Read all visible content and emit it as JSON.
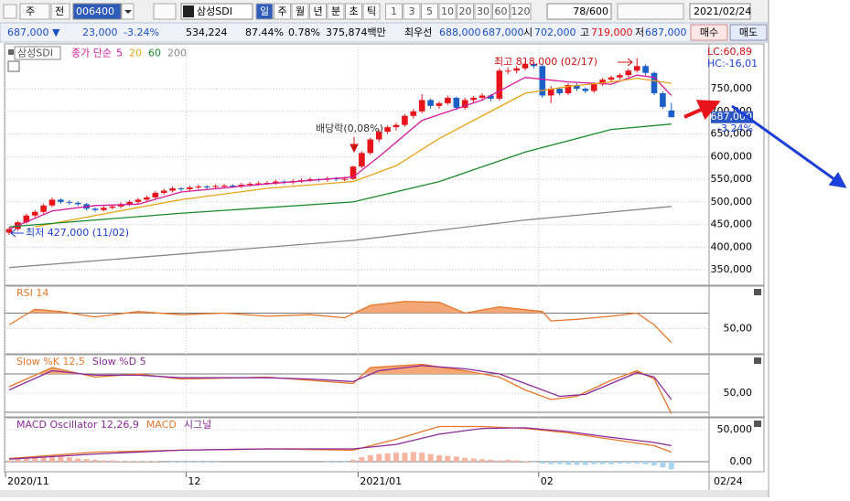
{
  "toolbar": {
    "market": "주",
    "prev": "전",
    "code": "006400",
    "name": "삼성SDI",
    "periods": [
      "일",
      "주",
      "월",
      "년",
      "분",
      "초",
      "틱"
    ],
    "intervals": [
      "1",
      "3",
      "5",
      "10",
      "20",
      "30",
      "60",
      "120"
    ],
    "count": "78/600",
    "date": "2021/02/24"
  },
  "quote": {
    "items": [
      "687,000 ▼",
      "23,000",
      "-3.24%",
      "534,224",
      "87.44%",
      "0.78%",
      "375,874백만",
      "최우선",
      "688,000",
      "687,000",
      "시",
      "702,000",
      "고",
      "719,000",
      "저",
      "687,000"
    ],
    "buy": "매수",
    "sell": "매도"
  },
  "chart_data": [
    {
      "type": "candlestick",
      "legend_box": "삼성SDI",
      "ma_label": "종가 단순",
      "categories": [
        "2020/11",
        null,
        null,
        null,
        null,
        null,
        null,
        null,
        null,
        null,
        null,
        null,
        null,
        null,
        null,
        null,
        null,
        null,
        null,
        null,
        null,
        "12",
        null,
        null,
        null,
        null,
        null,
        null,
        null,
        null,
        null,
        null,
        null,
        null,
        null,
        null,
        null,
        null,
        null,
        null,
        null,
        "2021/01",
        null,
        null,
        null,
        null,
        null,
        null,
        null,
        null,
        null,
        null,
        null,
        null,
        null,
        null,
        null,
        null,
        null,
        null,
        null,
        null,
        "02",
        null,
        null,
        null,
        null,
        null,
        null,
        null,
        null,
        null,
        null,
        null,
        null,
        null,
        null,
        null
      ],
      "up_color": "#e8141b",
      "down_color": "#1c5fc9",
      "ohlc": [
        [
          432000,
          445000,
          427000,
          440000
        ],
        [
          440000,
          458000,
          436000,
          455000
        ],
        [
          455000,
          474000,
          452000,
          470000
        ],
        [
          470000,
          482000,
          466000,
          478000
        ],
        [
          478000,
          496000,
          474000,
          492000
        ],
        [
          492000,
          510000,
          488000,
          505000
        ],
        [
          505000,
          508000,
          496000,
          500000
        ],
        [
          500000,
          504000,
          494000,
          498000
        ],
        [
          498000,
          501000,
          491000,
          495000
        ],
        [
          495000,
          498000,
          481000,
          485000
        ],
        [
          485000,
          488000,
          478000,
          482000
        ],
        [
          482000,
          491000,
          479000,
          487000
        ],
        [
          487000,
          494000,
          484000,
          490000
        ],
        [
          490000,
          499000,
          486000,
          495000
        ],
        [
          495000,
          504000,
          491000,
          500000
        ],
        [
          500000,
          509000,
          496000,
          505000
        ],
        [
          505000,
          514000,
          501000,
          510000
        ],
        [
          510000,
          524000,
          506000,
          520000
        ],
        [
          520000,
          529000,
          516000,
          525000
        ],
        [
          525000,
          534000,
          521000,
          530000
        ],
        [
          530000,
          533000,
          524000,
          528000
        ],
        [
          528000,
          536000,
          524000,
          532000
        ],
        [
          532000,
          538000,
          528000,
          534000
        ],
        [
          534000,
          537000,
          529000,
          533000
        ],
        [
          533000,
          539000,
          529000,
          535000
        ],
        [
          535000,
          540000,
          531000,
          536000
        ],
        [
          536000,
          539000,
          531000,
          535000
        ],
        [
          535000,
          542000,
          531000,
          538000
        ],
        [
          538000,
          544000,
          534000,
          540000
        ],
        [
          540000,
          545000,
          536000,
          541000
        ],
        [
          541000,
          546000,
          537000,
          542000
        ],
        [
          542000,
          549000,
          538000,
          545000
        ],
        [
          545000,
          548000,
          539000,
          543000
        ],
        [
          543000,
          550000,
          539000,
          546000
        ],
        [
          546000,
          552000,
          542000,
          548000
        ],
        [
          548000,
          554000,
          544000,
          550000
        ],
        [
          550000,
          553000,
          545000,
          549000
        ],
        [
          549000,
          556000,
          545000,
          552000
        ],
        [
          552000,
          555000,
          546000,
          550000
        ],
        [
          550000,
          555000,
          546000,
          551000
        ],
        [
          551000,
          580000,
          549000,
          578000
        ],
        [
          578000,
          612000,
          575000,
          608000
        ],
        [
          608000,
          642000,
          604000,
          638000
        ],
        [
          638000,
          660000,
          632000,
          655000
        ],
        [
          655000,
          669000,
          650000,
          665000
        ],
        [
          665000,
          675000,
          658000,
          670000
        ],
        [
          670000,
          694000,
          666000,
          690000
        ],
        [
          690000,
          705000,
          684000,
          700000
        ],
        [
          700000,
          738000,
          696000,
          725000
        ],
        [
          725000,
          728000,
          706000,
          712000
        ],
        [
          712000,
          722000,
          706000,
          718000
        ],
        [
          718000,
          735000,
          714000,
          730000
        ],
        [
          730000,
          733000,
          702000,
          708000
        ],
        [
          708000,
          730000,
          704000,
          725000
        ],
        [
          725000,
          734000,
          719000,
          730000
        ],
        [
          730000,
          740000,
          725000,
          735000
        ],
        [
          735000,
          738000,
          722000,
          728000
        ],
        [
          728000,
          795000,
          724000,
          790000
        ],
        [
          790000,
          797000,
          782000,
          790000
        ],
        [
          790000,
          800000,
          784000,
          795000
        ],
        [
          795000,
          810000,
          790000,
          805000
        ],
        [
          805000,
          809000,
          795000,
          800000
        ],
        [
          800000,
          803000,
          730000,
          735000
        ],
        [
          735000,
          756000,
          718000,
          750000
        ],
        [
          750000,
          754000,
          735000,
          740000
        ],
        [
          740000,
          762000,
          736000,
          758000
        ],
        [
          758000,
          762000,
          745000,
          750000
        ],
        [
          750000,
          753000,
          740000,
          745000
        ],
        [
          745000,
          764000,
          741000,
          760000
        ],
        [
          760000,
          774000,
          756000,
          770000
        ],
        [
          770000,
          779000,
          765000,
          775000
        ],
        [
          775000,
          784000,
          770000,
          780000
        ],
        [
          780000,
          794000,
          776000,
          790000
        ],
        [
          790000,
          818000,
          786000,
          800000
        ],
        [
          800000,
          804000,
          780000,
          785000
        ],
        [
          785000,
          788000,
          736000,
          740000
        ],
        [
          740000,
          744000,
          705000,
          710000
        ],
        [
          702000,
          719000,
          687000,
          687000
        ]
      ],
      "series": [
        {
          "name": "5",
          "color": "#d4199a",
          "x": [
            0,
            5,
            10,
            15,
            20,
            30,
            40,
            43,
            48,
            55,
            60,
            65,
            70,
            73,
            75,
            77
          ],
          "values": [
            440000,
            480000,
            492000,
            495000,
            522000,
            540000,
            555000,
            600000,
            680000,
            725000,
            775000,
            765000,
            760000,
            780000,
            775000,
            735000
          ]
        },
        {
          "name": "20",
          "color": "#e8a317",
          "x": [
            3,
            10,
            20,
            30,
            40,
            45,
            50,
            55,
            60,
            65,
            70,
            73,
            77
          ],
          "values": [
            445000,
            470000,
            505000,
            530000,
            545000,
            580000,
            640000,
            690000,
            740000,
            755000,
            765000,
            773000,
            762000
          ]
        },
        {
          "name": "60",
          "color": "#1a8a2a",
          "x": [
            0,
            20,
            40,
            50,
            60,
            70,
            77
          ],
          "values": [
            445000,
            475000,
            500000,
            545000,
            610000,
            660000,
            672000
          ]
        },
        {
          "name": "200",
          "color": "#888888",
          "x": [
            0,
            40,
            60,
            77
          ],
          "values": [
            355000,
            415000,
            460000,
            490000
          ]
        }
      ],
      "ylim": [
        320000,
        845000
      ],
      "yticks": [
        {
          "value": 350000,
          "label": "350,000"
        },
        {
          "value": 400000,
          "label": "400,000"
        },
        {
          "value": 450000,
          "label": "450,000"
        },
        {
          "value": 500000,
          "label": "500,000"
        },
        {
          "value": 550000,
          "label": "550,000"
        },
        {
          "value": 600000,
          "label": "600,000"
        },
        {
          "value": 650000,
          "label": "650,000"
        },
        {
          "value": 700000,
          "label": "700,000"
        },
        {
          "value": 750000,
          "label": "750,000"
        }
      ],
      "grid": true,
      "high_label": "최고 818,000 (02/17)",
      "low_label": "최저 427,000 (11/02)",
      "dividend_label": "배당락(0,08%)",
      "lc": "LC:60,89",
      "hc": "HC:-16,01",
      "last_price": {
        "value": 687000,
        "label": "687,000"
      },
      "last_change": "-3.24%",
      "x_end_label": "02/24"
    },
    {
      "type": "line",
      "series": [
        {
          "name": "RSI 14",
          "color": "#e8762a",
          "x": [
            0,
            3,
            6,
            10,
            15,
            20,
            25,
            30,
            35,
            39,
            42,
            46,
            50,
            53,
            57,
            62,
            63,
            66,
            70,
            73,
            75,
            77
          ],
          "values": [
            55,
            75,
            72,
            65,
            72,
            68,
            70,
            66,
            68,
            64,
            80,
            85,
            84,
            70,
            78,
            72,
            60,
            62,
            66,
            70,
            55,
            32
          ]
        }
      ],
      "fill_above": 70,
      "fill_color": "#f4a878",
      "hlines": [
        70
      ],
      "ylim": [
        20,
        100
      ],
      "yticks": [
        {
          "value": 50,
          "label": "50,00"
        }
      ]
    },
    {
      "type": "line",
      "series": [
        {
          "name": "Slow %K 12,5",
          "color": "#e8762a",
          "x": [
            0,
            5,
            10,
            15,
            20,
            30,
            35,
            40,
            42,
            48,
            53,
            57,
            60,
            63,
            66,
            70,
            73,
            75,
            77
          ],
          "values": [
            60,
            90,
            75,
            80,
            72,
            75,
            70,
            65,
            90,
            95,
            85,
            75,
            55,
            40,
            45,
            70,
            85,
            72,
            18
          ]
        },
        {
          "name": "Slow %D 5",
          "color": "#8a2a9a",
          "x": [
            0,
            5,
            10,
            15,
            20,
            30,
            35,
            40,
            43,
            48,
            53,
            57,
            60,
            64,
            67,
            70,
            73,
            75,
            77
          ],
          "values": [
            55,
            85,
            78,
            78,
            74,
            74,
            72,
            68,
            85,
            93,
            88,
            80,
            65,
            45,
            48,
            65,
            82,
            75,
            40
          ]
        }
      ],
      "fill_above": 80,
      "fill_color": "#f4a878",
      "hlines": [
        80,
        20
      ],
      "ylim": [
        15,
        105
      ],
      "yticks": [
        {
          "value": 50,
          "label": "50,00"
        }
      ]
    },
    {
      "type": "line",
      "series": [
        {
          "name": "MACD Oscillator 12,26,9",
          "type": "bar",
          "color": "#f5b5a0",
          "neg_color": "#a9d4f0",
          "values": [
            2000,
            4000,
            6000,
            7000,
            8000,
            9000,
            8000,
            7000,
            5000,
            4000,
            3000,
            2000,
            2000,
            1000,
            1000,
            1000,
            1000,
            1000,
            0,
            -1000,
            -1000,
            -1000,
            -1000,
            -1000,
            -1000,
            0,
            0,
            0,
            0,
            0,
            0,
            0,
            0,
            0,
            0,
            0,
            0,
            -1000,
            -1000,
            -1000,
            3000,
            7000,
            10000,
            12000,
            13000,
            14000,
            14000,
            15000,
            14000,
            12000,
            10000,
            9000,
            8000,
            6000,
            5000,
            4000,
            3000,
            2000,
            3000,
            2000,
            1000,
            -1000,
            -3000,
            -4000,
            -4000,
            -5000,
            -5000,
            -5000,
            -4000,
            -4000,
            -4000,
            -3000,
            -3000,
            -3000,
            -4000,
            -6000,
            -9000,
            -12000
          ]
        },
        {
          "name": "MACD",
          "color": "#e8762a",
          "x": [
            0,
            10,
            20,
            30,
            40,
            45,
            50,
            55,
            60,
            65,
            70,
            75,
            77
          ],
          "values": [
            5000,
            15000,
            18000,
            20000,
            18000,
            35000,
            55000,
            55000,
            52000,
            45000,
            35000,
            25000,
            15000
          ]
        },
        {
          "name": "시그널",
          "color": "#8a2a9a",
          "x": [
            0,
            10,
            20,
            30,
            40,
            45,
            50,
            55,
            60,
            65,
            70,
            75,
            77
          ],
          "values": [
            4000,
            12000,
            18000,
            20000,
            20000,
            27000,
            43000,
            52000,
            53000,
            47000,
            38000,
            30000,
            25000
          ]
        }
      ],
      "hlines": [
        0
      ],
      "ylim": [
        -15000,
        67000
      ],
      "yticks": [
        {
          "value": 50000,
          "label": "50,000"
        },
        {
          "value": 0,
          "label": "0,00"
        }
      ]
    }
  ]
}
